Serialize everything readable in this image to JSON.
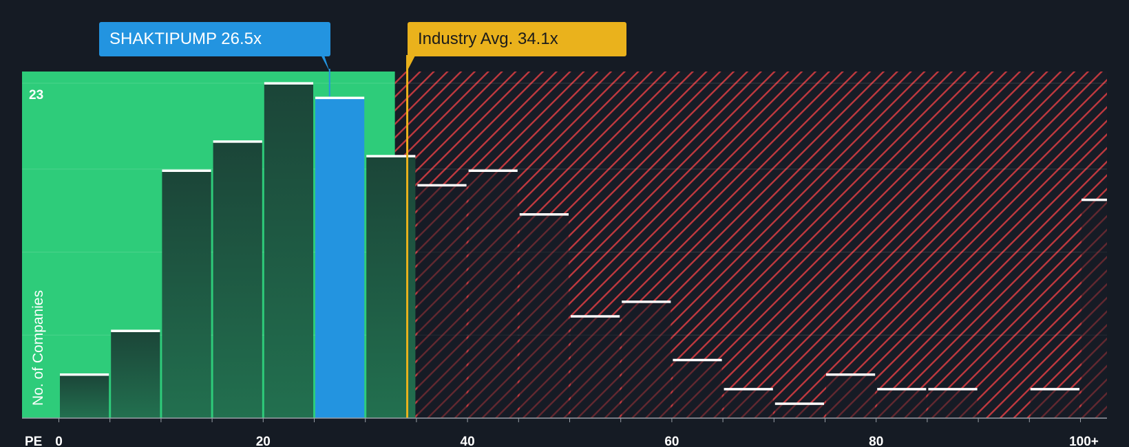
{
  "company_callout": {
    "ticker": "SHAKTIPUMP",
    "value_text": "26.5x"
  },
  "industry_callout": {
    "label": "Industry Avg.",
    "value_text": "34.1x"
  },
  "chart_data": {
    "type": "bar",
    "xlabel": "PE",
    "ylabel": "No. of Companies",
    "x_ticks": [
      "0",
      "20",
      "40",
      "60",
      "80",
      "100+"
    ],
    "y_ticks": [
      "23"
    ],
    "ylim": [
      0,
      23.8
    ],
    "xlim": [
      0,
      102.5
    ],
    "bin_width": 5,
    "company_value": 26.5,
    "industry_avg": 34.1,
    "fair_cutoff": 32.9,
    "bins": [
      {
        "start": 0,
        "count": 3
      },
      {
        "start": 5,
        "count": 6
      },
      {
        "start": 10,
        "count": 17
      },
      {
        "start": 15,
        "count": 19
      },
      {
        "start": 20,
        "count": 23
      },
      {
        "start": 25,
        "count": 22,
        "highlight": true
      },
      {
        "start": 30,
        "count": 18
      },
      {
        "start": 35,
        "count": 16
      },
      {
        "start": 40,
        "count": 17
      },
      {
        "start": 45,
        "count": 14
      },
      {
        "start": 50,
        "count": 7
      },
      {
        "start": 55,
        "count": 8
      },
      {
        "start": 60,
        "count": 4
      },
      {
        "start": 65,
        "count": 2
      },
      {
        "start": 70,
        "count": 1
      },
      {
        "start": 75,
        "count": 3
      },
      {
        "start": 80,
        "count": 2
      },
      {
        "start": 85,
        "count": 2
      },
      {
        "start": 95,
        "count": 2
      },
      {
        "start": 100,
        "count": 15
      }
    ],
    "colors": {
      "background": "#151b24",
      "fair_zone": "#2ecc7a",
      "bar": "#1c4a3c",
      "highlight": "#2394e0",
      "overvalued_stripe": "#c0393f",
      "industry": "#eab21c"
    }
  }
}
